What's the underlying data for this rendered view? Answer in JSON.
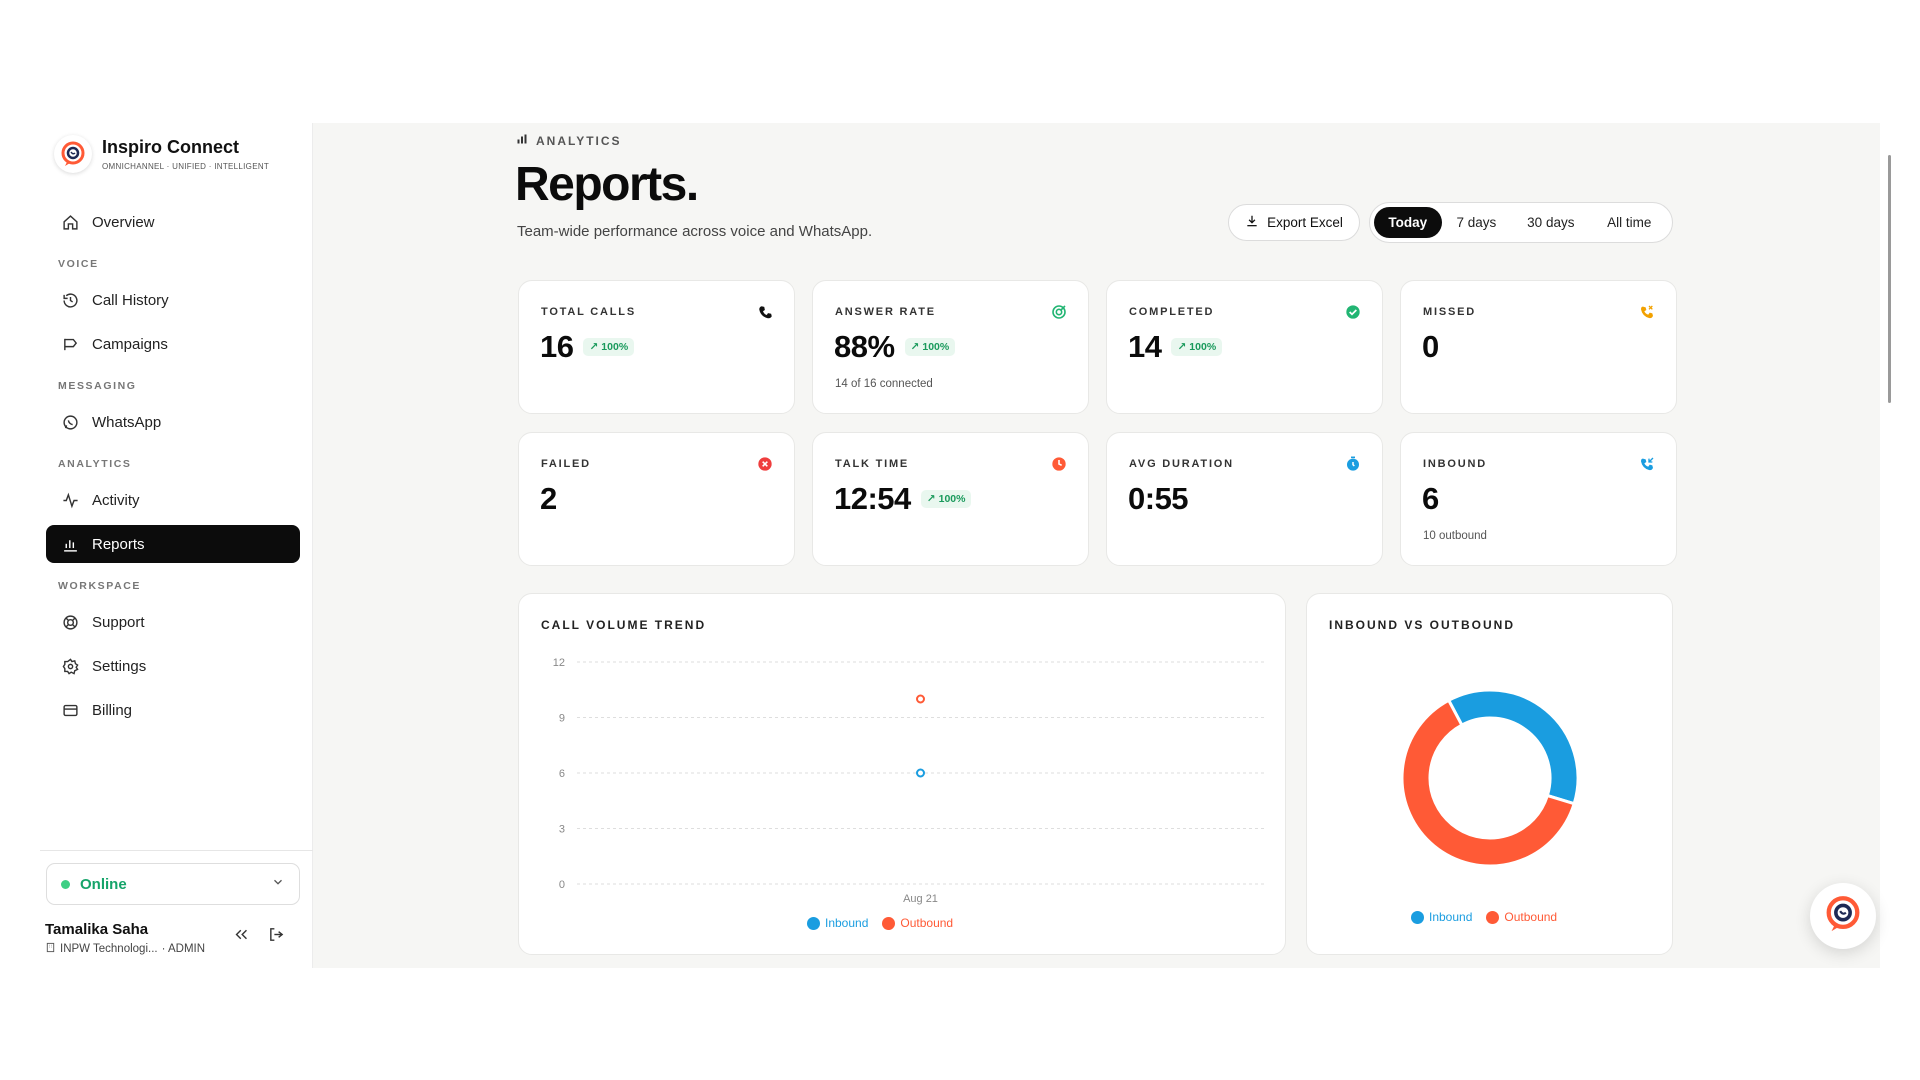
{
  "brand": {
    "name": "Inspiro Connect",
    "tagline": "OMNICHANNEL · UNIFIED · INTELLIGENT"
  },
  "nav": {
    "overview": "Overview",
    "voice_section": "VOICE",
    "call_history": "Call History",
    "campaigns": "Campaigns",
    "messaging_section": "MESSAGING",
    "whatsapp": "WhatsApp",
    "analytics_section": "ANALYTICS",
    "activity": "Activity",
    "reports": "Reports",
    "workspace_section": "WORKSPACE",
    "support": "Support",
    "settings": "Settings",
    "billing": "Billing"
  },
  "status": {
    "label": "Online",
    "color": "#3ecf84"
  },
  "user": {
    "name": "Tamalika Saha",
    "org": "INPW Technologi...",
    "role": "· ADMIN"
  },
  "header": {
    "eyebrow": "ANALYTICS",
    "title": "Reports.",
    "subtitle": "Team-wide performance across voice and WhatsApp.",
    "export_label": "Export Excel",
    "ranges": [
      "Today",
      "7 days",
      "30 days",
      "All time"
    ],
    "active_range": "Today"
  },
  "stats": {
    "total_calls": {
      "label": "TOTAL CALLS",
      "value": "16",
      "badge": "100%",
      "icon": "phone-icon"
    },
    "answer_rate": {
      "label": "ANSWER RATE",
      "value": "88%",
      "badge": "100%",
      "note": "14 of 16 connected",
      "icon": "target-icon"
    },
    "completed": {
      "label": "COMPLETED",
      "value": "14",
      "badge": "100%",
      "icon": "check-circle-icon"
    },
    "missed": {
      "label": "MISSED",
      "value": "0",
      "icon": "phone-missed-icon"
    },
    "failed": {
      "label": "FAILED",
      "value": "2",
      "icon": "x-circle-icon"
    },
    "talk_time": {
      "label": "TALK TIME",
      "value": "12:54",
      "badge": "100%",
      "icon": "clock-icon"
    },
    "avg_duration": {
      "label": "AVG DURATION",
      "value": "0:55",
      "icon": "timer-icon"
    },
    "inbound": {
      "label": "INBOUND",
      "value": "6",
      "note": "10 outbound",
      "icon": "phone-incoming-icon"
    }
  },
  "colors": {
    "inbound": "#1a9de0",
    "outbound": "#ff5a36",
    "accent": "#0c0c0c",
    "badge_green": "#1a9a5c"
  },
  "chart_data": [
    {
      "type": "line",
      "title": "CALL VOLUME TREND",
      "categories": [
        "Aug 21"
      ],
      "yticks": [
        "0",
        "3",
        "6",
        "9",
        "12"
      ],
      "ylim": [
        0,
        12
      ],
      "series": [
        {
          "name": "Inbound",
          "values": [
            6
          ]
        },
        {
          "name": "Outbound",
          "values": [
            10
          ]
        }
      ],
      "grid": true,
      "legend": "bottom"
    },
    {
      "type": "pie",
      "title": "INBOUND VS OUTBOUND",
      "categories": [
        "Inbound",
        "Outbound"
      ],
      "values": [
        6,
        10
      ],
      "donut": true,
      "legend": "bottom"
    }
  ]
}
